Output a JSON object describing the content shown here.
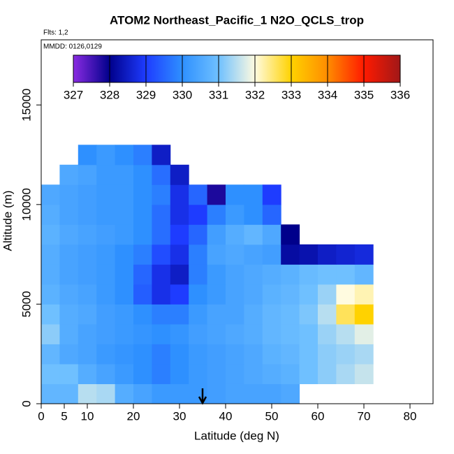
{
  "chart_data": {
    "type": "heatmap",
    "title": "ATOM2 Northeast_Pacific_1 N2O_QCLS_trop",
    "notes": [
      "Flts: 1,2",
      "MMDD: 0126,0129"
    ],
    "x_label": "Latitude (deg N)",
    "y_label": "Altitude (m)",
    "xlim": [
      0,
      85
    ],
    "xticks": [
      0,
      5,
      10,
      20,
      30,
      40,
      50,
      60,
      70,
      80
    ],
    "ylim": [
      0,
      18270
    ],
    "yticks": [
      0,
      5000,
      10000,
      15000
    ],
    "x_bins": [
      0,
      4,
      8,
      12,
      16,
      20,
      24,
      28,
      32,
      36,
      40,
      44,
      48,
      52,
      56,
      60,
      64,
      68,
      72
    ],
    "y_bins": [
      0,
      1000,
      2000,
      3000,
      4000,
      5000,
      6000,
      7000,
      8000,
      9000,
      10000,
      11000,
      12000,
      13000
    ],
    "values": [
      [
        330.8,
        330.8,
        331.5,
        331.4,
        330.6,
        330.4,
        330.2,
        330.2,
        330.2,
        330.3,
        330.4,
        330.4,
        330.4,
        330.5,
        null,
        null,
        null,
        null
      ],
      [
        331,
        331,
        330.6,
        330.4,
        330.2,
        330,
        329.8,
        330,
        330.2,
        330.3,
        330.4,
        330.5,
        330.6,
        330.7,
        331,
        331.2,
        331.4,
        331.6
      ],
      [
        330.8,
        330.5,
        330.4,
        330.2,
        330.1,
        330,
        329.8,
        330,
        330.2,
        330.3,
        330.4,
        330.5,
        330.7,
        330.8,
        331,
        331.2,
        331.3,
        331.4
      ],
      [
        331.2,
        330.6,
        330.4,
        330.3,
        330.2,
        330.1,
        330,
        330.1,
        330.3,
        330.4,
        330.5,
        330.6,
        330.8,
        330.9,
        331,
        331.3,
        331.5,
        331.8
      ],
      [
        331,
        330.6,
        330.5,
        330.3,
        330.2,
        330,
        329.8,
        329.8,
        330.2,
        330.4,
        330.4,
        330.6,
        330.8,
        330.9,
        331.1,
        331.5,
        332.6,
        333
      ],
      [
        330.7,
        330.5,
        330.4,
        330.2,
        330,
        329.4,
        328.8,
        329,
        330,
        330.2,
        330.4,
        330.5,
        330.7,
        330.8,
        331,
        331.3,
        332,
        332.2
      ],
      [
        330.6,
        330.4,
        330.3,
        330.2,
        330,
        329.5,
        328.8,
        328.5,
        329.8,
        330.2,
        330.4,
        330.5,
        330.6,
        330.7,
        330.9,
        331,
        331,
        330.8
      ],
      [
        330.6,
        330.4,
        330.3,
        330.2,
        330,
        329.8,
        329.2,
        328.8,
        329.8,
        330.4,
        330.5,
        330.4,
        330.3,
        328.2,
        328.3,
        328.5,
        328.6,
        328.7
      ],
      [
        330.7,
        330.5,
        330.4,
        330.3,
        330.2,
        330,
        329.6,
        329,
        329.5,
        330.3,
        330.6,
        330.8,
        330.5,
        328,
        null,
        null,
        null,
        null
      ],
      [
        330.6,
        330.4,
        330.3,
        330.2,
        330.2,
        330,
        329.6,
        328.8,
        329,
        329.8,
        330.2,
        330,
        329.5,
        null,
        null,
        null,
        null,
        null
      ],
      [
        330.5,
        330.4,
        330.3,
        330.2,
        330.2,
        330,
        329.8,
        328.8,
        329.5,
        327.8,
        330,
        330,
        329,
        null,
        null,
        null,
        null,
        null
      ],
      [
        null,
        330.5,
        330.4,
        330.2,
        330.2,
        330,
        329.6,
        328.5,
        null,
        null,
        null,
        null,
        null,
        null,
        null,
        null,
        null,
        null
      ],
      [
        null,
        null,
        330,
        330.2,
        330,
        329.8,
        328.5,
        null,
        null,
        null,
        null,
        null,
        null,
        null,
        null,
        null,
        null,
        null
      ]
    ],
    "colorbar": {
      "lim": [
        327,
        336
      ],
      "ticks": [
        327,
        328,
        329,
        330,
        331,
        332,
        333,
        334,
        335,
        336
      ],
      "colors": [
        "#8a2be2",
        "#00008b",
        "#1e3cff",
        "#2e90ff",
        "#6fc0ff",
        "#fffbe0",
        "#ffd200",
        "#ff8c00",
        "#ff1a00",
        "#a01818"
      ]
    },
    "marker_x": 35
  }
}
